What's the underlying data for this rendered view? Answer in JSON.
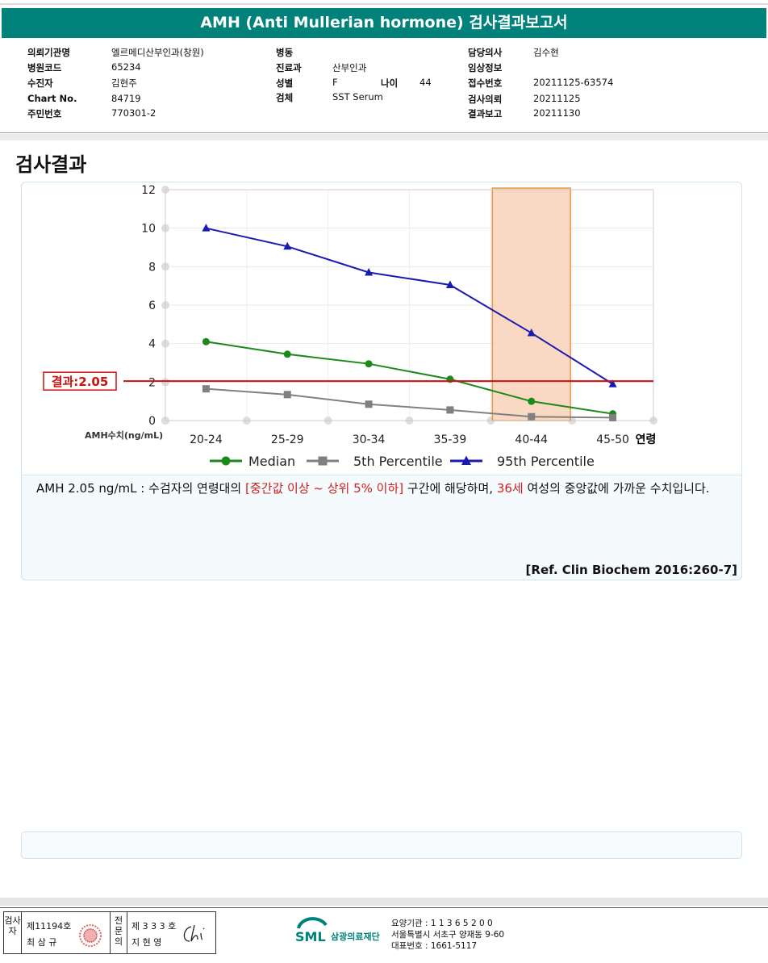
{
  "header": {
    "title": "AMH (Anti Mullerian hormone) 검사결과보고서"
  },
  "info": {
    "requesting_org_label": "의뢰기관명",
    "requesting_org": "엘르메디산부인과(창원)",
    "hospital_code_label": "병원코드",
    "hospital_code": "65234",
    "patient_label": "수진자",
    "patient": "김현주",
    "chart_no_label": "Chart No.",
    "chart_no": "84719",
    "resident_no_label": "주민번호",
    "resident_no": "770301-2",
    "ward_label": "병동",
    "ward": "",
    "dept_label": "진료과",
    "dept": "산부인과",
    "sex_label": "성별",
    "sex": "F",
    "age_label": "나이",
    "age": "44",
    "specimen_label": "검체",
    "specimen": "SST Serum",
    "doctor_label": "담당의사",
    "doctor": "김수현",
    "clinical_info_label": "임상정보",
    "clinical_info": "",
    "receipt_no_label": "접수번호",
    "receipt_no": "20211125-63574",
    "request_date_label": "검사의뢰",
    "request_date": "20211125",
    "report_date_label": "결과보고",
    "report_date": "20211130"
  },
  "section_title": "검사결과",
  "chart_data": {
    "type": "line",
    "categories": [
      "20-24",
      "25-29",
      "30-34",
      "35-39",
      "40-44",
      "45-50"
    ],
    "x_suffix_label": "연령",
    "ylabel": "AMH수치(ng/mL)",
    "ylim": [
      0,
      12
    ],
    "yticks": [
      "0",
      "2",
      "4",
      "6",
      "8",
      "10",
      "12"
    ],
    "grid": true,
    "series": [
      {
        "name": "Median",
        "color": "#1a8a1a",
        "marker": "circle",
        "values": [
          4.1,
          3.45,
          2.95,
          2.15,
          1.0,
          0.35
        ]
      },
      {
        "name": "5th Percentile",
        "color": "#808080",
        "marker": "square",
        "values": [
          1.65,
          1.35,
          0.85,
          0.55,
          0.2,
          0.15
        ]
      },
      {
        "name": "95th Percentile",
        "color": "#1a1ab0",
        "marker": "triangle",
        "values": [
          10.0,
          9.05,
          7.7,
          7.05,
          4.55,
          1.9
        ]
      }
    ],
    "result_value": 2.05,
    "result_label": "결과:2.05",
    "result_color": "#cc1111",
    "highlight_category": "40-44",
    "highlight_color": "#f7d0b4",
    "legend_position": "bottom"
  },
  "comment": {
    "part1": "AMH  2.05 ng/mL : 수검자의 연령대의 ",
    "highlight1": "[중간값 이상 ~ 상위 5% 이하]",
    "part2": "  구간에 해당하며, ",
    "highlight2": "36세",
    "part3": " 여성의 중앙값에 가까운 수치입니다."
  },
  "reference": "[Ref. Clin Biochem 2016:260-7]",
  "signature": {
    "examiner_label": "검사자",
    "examiner_no": "제11194호",
    "examiner_name": "최 삼 규",
    "specialist_label": "전문의",
    "specialist_no": "제 3 3 3 호",
    "specialist_name": "지 현 영"
  },
  "footer": {
    "logo_text": "SML",
    "org_name": "삼광의료재단",
    "institution_no": "요양기관 : 1 1 3 6 5 2 0 0",
    "address": "서울특별시 서초구 양재동 9-60",
    "phone": "대표번호 : 1661-5117"
  }
}
